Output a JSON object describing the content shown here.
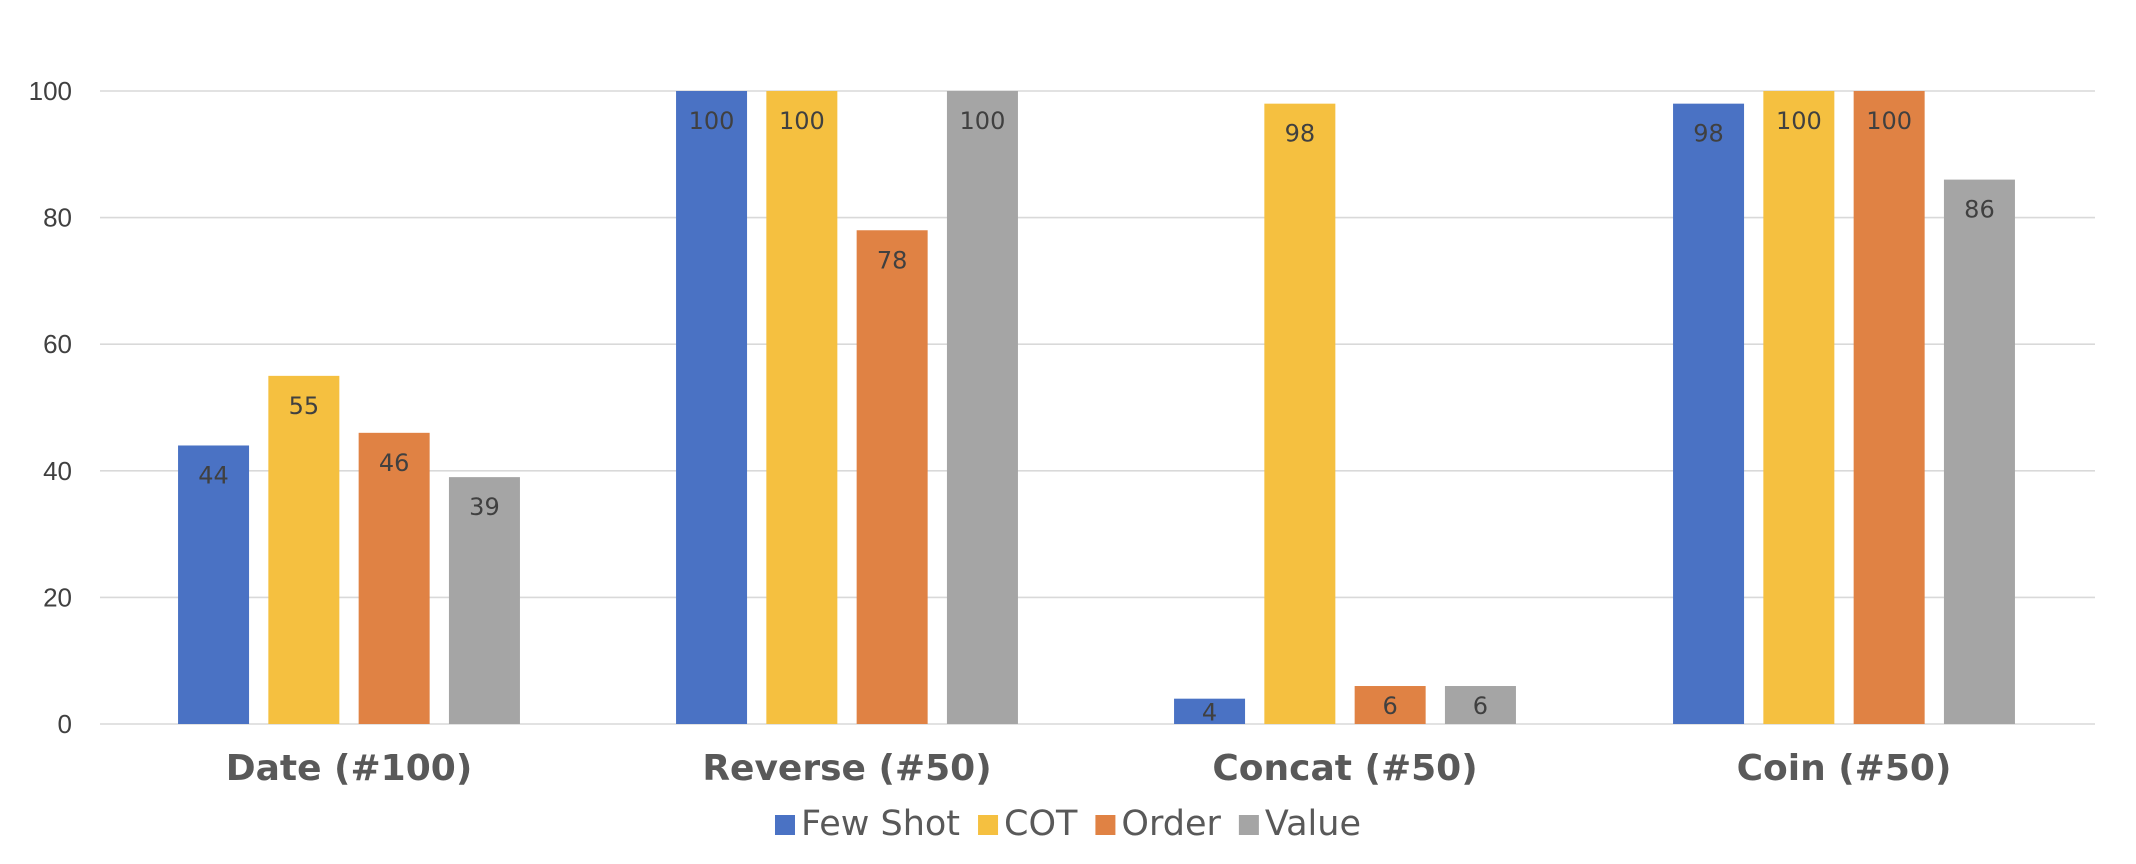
{
  "colors": {
    "grid": "#d9d9d9",
    "axis": "#d9d9d9",
    "label": "#404040",
    "category_label": "#595959"
  },
  "chart_data": {
    "type": "bar",
    "categories": [
      "Date (#100)",
      "Reverse (#50)",
      "Concat (#50)",
      "Coin (#50)"
    ],
    "series": [
      {
        "name": "Few Shot",
        "color": "#4a72c4",
        "values": [
          44,
          100,
          4,
          98
        ]
      },
      {
        "name": "COT",
        "color": "#f5c040",
        "values": [
          55,
          100,
          98,
          100
        ]
      },
      {
        "name": "Order",
        "color": "#e08244",
        "values": [
          46,
          78,
          6,
          100
        ]
      },
      {
        "name": "Value",
        "color": "#a5a5a5",
        "values": [
          39,
          100,
          6,
          86
        ]
      }
    ],
    "yticks": [
      0,
      20,
      40,
      60,
      80,
      100
    ],
    "ylim": [
      0,
      100
    ],
    "grid": true,
    "legend": "bottom-center",
    "data_labels": true,
    "title": "",
    "xlabel": "",
    "ylabel": ""
  }
}
